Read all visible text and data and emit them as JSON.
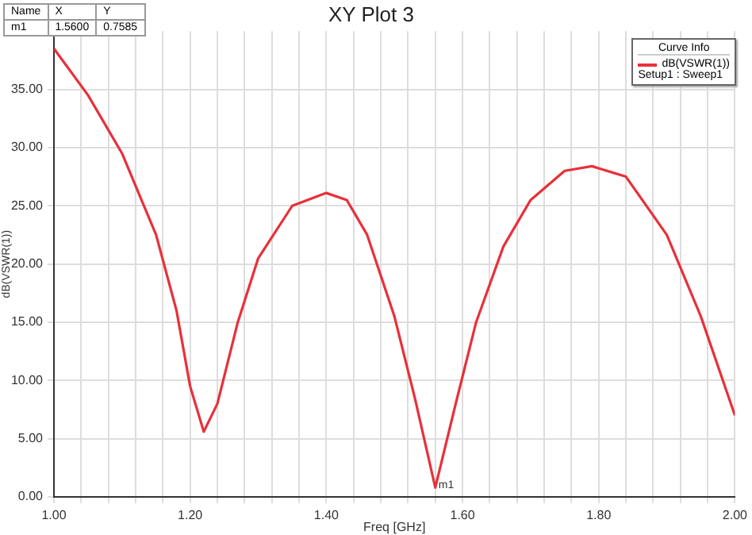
{
  "chart_data": {
    "type": "line",
    "title": "XY Plot 3",
    "xlabel": "Freq [GHz]",
    "ylabel": "dB(VSWR(1))",
    "legend_title": "Curve Info",
    "x": [
      1.0,
      1.05,
      1.1,
      1.15,
      1.18,
      1.2,
      1.22,
      1.24,
      1.27,
      1.3,
      1.35,
      1.4,
      1.43,
      1.46,
      1.5,
      1.53,
      1.56,
      1.59,
      1.62,
      1.66,
      1.7,
      1.75,
      1.79,
      1.84,
      1.9,
      1.95,
      2.0
    ],
    "series": [
      {
        "name": "dB(VSWR(1))",
        "color": "#e8303a",
        "values": [
          38.5,
          34.5,
          29.5,
          22.5,
          16,
          9.5,
          5.6,
          8,
          15,
          20.5,
          25,
          26.1,
          25.5,
          22.5,
          15.5,
          8.5,
          0.8,
          8,
          15,
          21.5,
          25.5,
          28,
          28.4,
          27.5,
          22.5,
          15.5,
          7
        ]
      }
    ],
    "xlim": [
      1.0,
      2.0
    ],
    "xticks": [
      {
        "value": 1.0,
        "label": "1.00"
      },
      {
        "value": 1.04,
        "label": null
      },
      {
        "value": 1.08,
        "label": null
      },
      {
        "value": 1.12,
        "label": null
      },
      {
        "value": 1.16,
        "label": null
      },
      {
        "value": 1.2,
        "label": "1.20"
      },
      {
        "value": 1.24,
        "label": null
      },
      {
        "value": 1.28,
        "label": null
      },
      {
        "value": 1.32,
        "label": null
      },
      {
        "value": 1.36,
        "label": null
      },
      {
        "value": 1.4,
        "label": "1.40"
      },
      {
        "value": 1.44,
        "label": null
      },
      {
        "value": 1.48,
        "label": null
      },
      {
        "value": 1.52,
        "label": null
      },
      {
        "value": 1.56,
        "label": null
      },
      {
        "value": 1.6,
        "label": "1.60"
      },
      {
        "value": 1.64,
        "label": null
      },
      {
        "value": 1.68,
        "label": null
      },
      {
        "value": 1.72,
        "label": null
      },
      {
        "value": 1.76,
        "label": null
      },
      {
        "value": 1.8,
        "label": "1.80"
      },
      {
        "value": 1.84,
        "label": null
      },
      {
        "value": 1.88,
        "label": null
      },
      {
        "value": 1.92,
        "label": null
      },
      {
        "value": 1.96,
        "label": null
      },
      {
        "value": 2.0,
        "label": "2.00"
      }
    ],
    "ylim": [
      0,
      40
    ],
    "yticks": [
      {
        "value": 0,
        "label": "0.00"
      },
      {
        "value": 5,
        "label": "5.00"
      },
      {
        "value": 10,
        "label": "10.00"
      },
      {
        "value": 15,
        "label": "15.00"
      },
      {
        "value": 20,
        "label": "20.00"
      },
      {
        "value": 25,
        "label": "25.00"
      },
      {
        "value": 30,
        "label": "30.00"
      },
      {
        "value": 35,
        "label": "35.00"
      }
    ],
    "grid": true,
    "legend": "top right",
    "marker": "none",
    "line_style": "solid",
    "annotations": [
      "Name",
      "X",
      "Y",
      "m1",
      "1.5600",
      "0.7585",
      {
        "text": "m1",
        "x": 1.56,
        "y": 0.8
      },
      "Setup1 : Sweep1"
    ]
  }
}
